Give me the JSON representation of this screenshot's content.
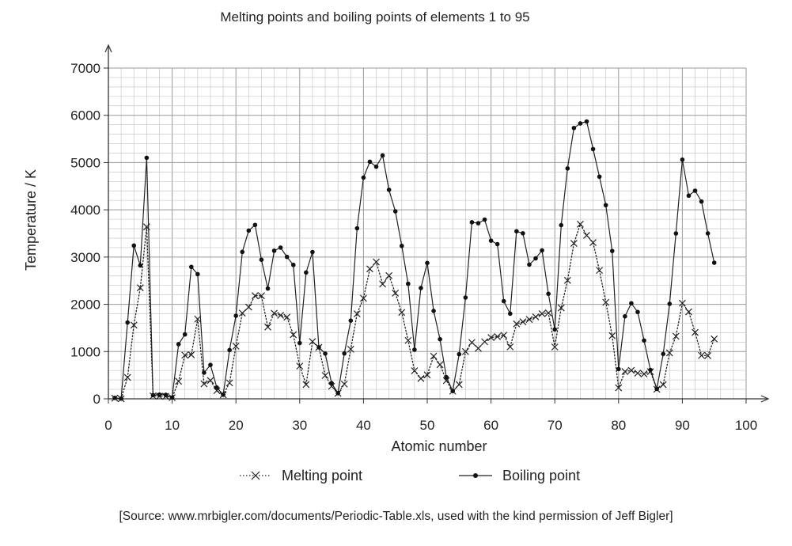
{
  "chart_data": {
    "type": "line",
    "title": "Melting points and boiling points of elements 1 to 95",
    "xlabel": "Atomic number",
    "ylabel": "Temperature / K",
    "xlim": [
      0,
      100
    ],
    "ylim": [
      0,
      7000
    ],
    "xticks": [
      0,
      10,
      20,
      30,
      40,
      50,
      60,
      70,
      80,
      90,
      100
    ],
    "yticks": [
      0,
      1000,
      2000,
      3000,
      4000,
      5000,
      6000,
      7000
    ],
    "grid": true,
    "legend": "bottom",
    "x": [
      1,
      2,
      3,
      4,
      5,
      6,
      7,
      8,
      9,
      10,
      11,
      12,
      13,
      14,
      15,
      16,
      17,
      18,
      19,
      20,
      21,
      22,
      23,
      24,
      25,
      26,
      27,
      28,
      29,
      30,
      31,
      32,
      33,
      34,
      35,
      36,
      37,
      38,
      39,
      40,
      41,
      42,
      43,
      44,
      45,
      46,
      47,
      48,
      49,
      50,
      51,
      52,
      53,
      54,
      55,
      56,
      57,
      58,
      59,
      60,
      61,
      62,
      63,
      64,
      65,
      66,
      67,
      68,
      69,
      70,
      71,
      72,
      73,
      74,
      75,
      76,
      77,
      78,
      79,
      80,
      81,
      82,
      83,
      84,
      85,
      86,
      87,
      88,
      89,
      90,
      91,
      92,
      93,
      94,
      95
    ],
    "series": [
      {
        "name": "Melting point",
        "marker": "cross",
        "line": "dotted",
        "values": [
          14,
          1,
          454,
          1560,
          2349,
          3640,
          63,
          55,
          54,
          25,
          371,
          923,
          933,
          1687,
          317,
          388,
          172,
          84,
          337,
          1115,
          1814,
          1941,
          2183,
          2180,
          1519,
          1811,
          1768,
          1728,
          1358,
          693,
          303,
          1211,
          1090,
          494,
          266,
          116,
          312,
          1050,
          1799,
          2128,
          2750,
          2896,
          2430,
          2607,
          2237,
          1828,
          1235,
          594,
          430,
          505,
          904,
          723,
          387,
          161,
          302,
          1000,
          1193,
          1068,
          1208,
          1297,
          1315,
          1345,
          1099,
          1585,
          1629,
          1680,
          1734,
          1802,
          1818,
          1097,
          1925,
          2506,
          3290,
          3695,
          3459,
          3306,
          2719,
          2041,
          1337,
          234,
          577,
          601,
          544,
          527,
          575,
          202,
          300,
          973,
          1323,
          2023,
          1841,
          1405,
          917,
          913,
          1267
        ]
      },
      {
        "name": "Boiling point",
        "marker": "dot",
        "line": "solid",
        "values": [
          20,
          4,
          1615,
          3243,
          2823,
          5100,
          77,
          90,
          85,
          27,
          1156,
          1363,
          2792,
          2638,
          553,
          718,
          239,
          87,
          1032,
          1757,
          3109,
          3560,
          3680,
          2944,
          2334,
          3134,
          3200,
          3003,
          2835,
          1180,
          2673,
          3106,
          1090,
          958,
          332,
          120,
          961,
          1655,
          3609,
          4682,
          5017,
          4912,
          5150,
          4423,
          3968,
          3236,
          2435,
          1040,
          2345,
          2875,
          1860,
          1261,
          457,
          165,
          944,
          2143,
          3737,
          3716,
          3793,
          3347,
          3273,
          2067,
          1802,
          3546,
          3503,
          2840,
          2973,
          3141,
          2223,
          1469,
          3675,
          4876,
          5731,
          5828,
          5869,
          5285,
          4701,
          4098,
          3129,
          630,
          1746,
          2022,
          1837,
          1235,
          610,
          211,
          950,
          2010,
          3500,
          5061,
          4300,
          4404,
          4175,
          3501,
          2880
        ]
      }
    ],
    "legend_entries": [
      "Melting point",
      "Boiling point"
    ],
    "source": "[Source: www.mrbigler.com/documents/Periodic-Table.xls, used with the kind permission of Jeff Bigler]"
  }
}
